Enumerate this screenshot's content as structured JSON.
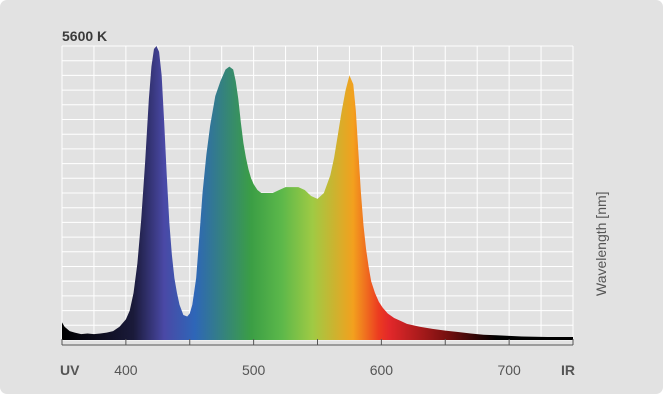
{
  "chart_data": {
    "type": "area",
    "title": "5600 K",
    "ylabel": "Wavelength [nm]",
    "x_end_labels": {
      "left": "UV",
      "right": "IR"
    },
    "x_ticks": [
      400,
      500,
      600,
      700
    ],
    "x_tick_labels": [
      "400",
      "500",
      "600",
      "700"
    ],
    "xlim": [
      350,
      750
    ],
    "ylim": [
      0,
      1
    ],
    "grid": true,
    "series": [
      {
        "x": [
          350,
          352,
          356,
          360,
          365,
          370,
          375,
          380,
          385,
          390,
          395,
          400,
          403,
          406,
          409,
          412,
          415,
          418,
          420,
          422,
          424,
          426,
          428,
          430,
          432,
          434,
          436,
          438,
          440,
          442,
          445,
          448,
          450,
          452,
          455,
          458,
          460,
          463,
          466,
          470,
          474,
          478,
          481,
          484,
          486,
          488,
          490,
          492,
          494,
          496,
          498,
          500,
          503,
          506,
          510,
          515,
          520,
          525,
          530,
          535,
          540,
          545,
          550,
          555,
          560,
          563,
          566,
          569,
          572,
          575,
          578,
          580,
          582,
          584,
          586,
          588,
          590,
          592,
          595,
          598,
          601,
          605,
          610,
          615,
          620,
          630,
          640,
          650,
          660,
          670,
          680,
          690,
          700,
          710,
          720,
          730,
          740,
          750
        ],
        "values": [
          0.06,
          0.045,
          0.03,
          0.025,
          0.02,
          0.022,
          0.02,
          0.022,
          0.025,
          0.03,
          0.045,
          0.07,
          0.1,
          0.16,
          0.26,
          0.41,
          0.6,
          0.82,
          0.93,
          0.99,
          1.0,
          0.98,
          0.9,
          0.74,
          0.56,
          0.4,
          0.29,
          0.21,
          0.16,
          0.12,
          0.085,
          0.08,
          0.09,
          0.12,
          0.21,
          0.38,
          0.5,
          0.63,
          0.73,
          0.83,
          0.88,
          0.92,
          0.93,
          0.92,
          0.88,
          0.82,
          0.74,
          0.67,
          0.62,
          0.58,
          0.55,
          0.53,
          0.51,
          0.5,
          0.5,
          0.5,
          0.51,
          0.52,
          0.52,
          0.52,
          0.51,
          0.49,
          0.48,
          0.5,
          0.56,
          0.62,
          0.7,
          0.78,
          0.85,
          0.9,
          0.87,
          0.78,
          0.64,
          0.5,
          0.39,
          0.31,
          0.25,
          0.2,
          0.16,
          0.13,
          0.11,
          0.09,
          0.075,
          0.065,
          0.055,
          0.045,
          0.038,
          0.032,
          0.027,
          0.022,
          0.018,
          0.016,
          0.014,
          0.012,
          0.011,
          0.01,
          0.01,
          0.01
        ]
      }
    ]
  },
  "colors": {
    "background": "#e2e2e2",
    "grid": "#ffffff",
    "axis": "#555555",
    "spectrum_stops": [
      "#000000",
      "#1a1a3a",
      "#4a49a6",
      "#2e66b8",
      "#3b9e45",
      "#5cb84a",
      "#9fca44",
      "#f3a01e",
      "#ec3b20",
      "#e3282a",
      "#7a1010",
      "#000000"
    ]
  }
}
